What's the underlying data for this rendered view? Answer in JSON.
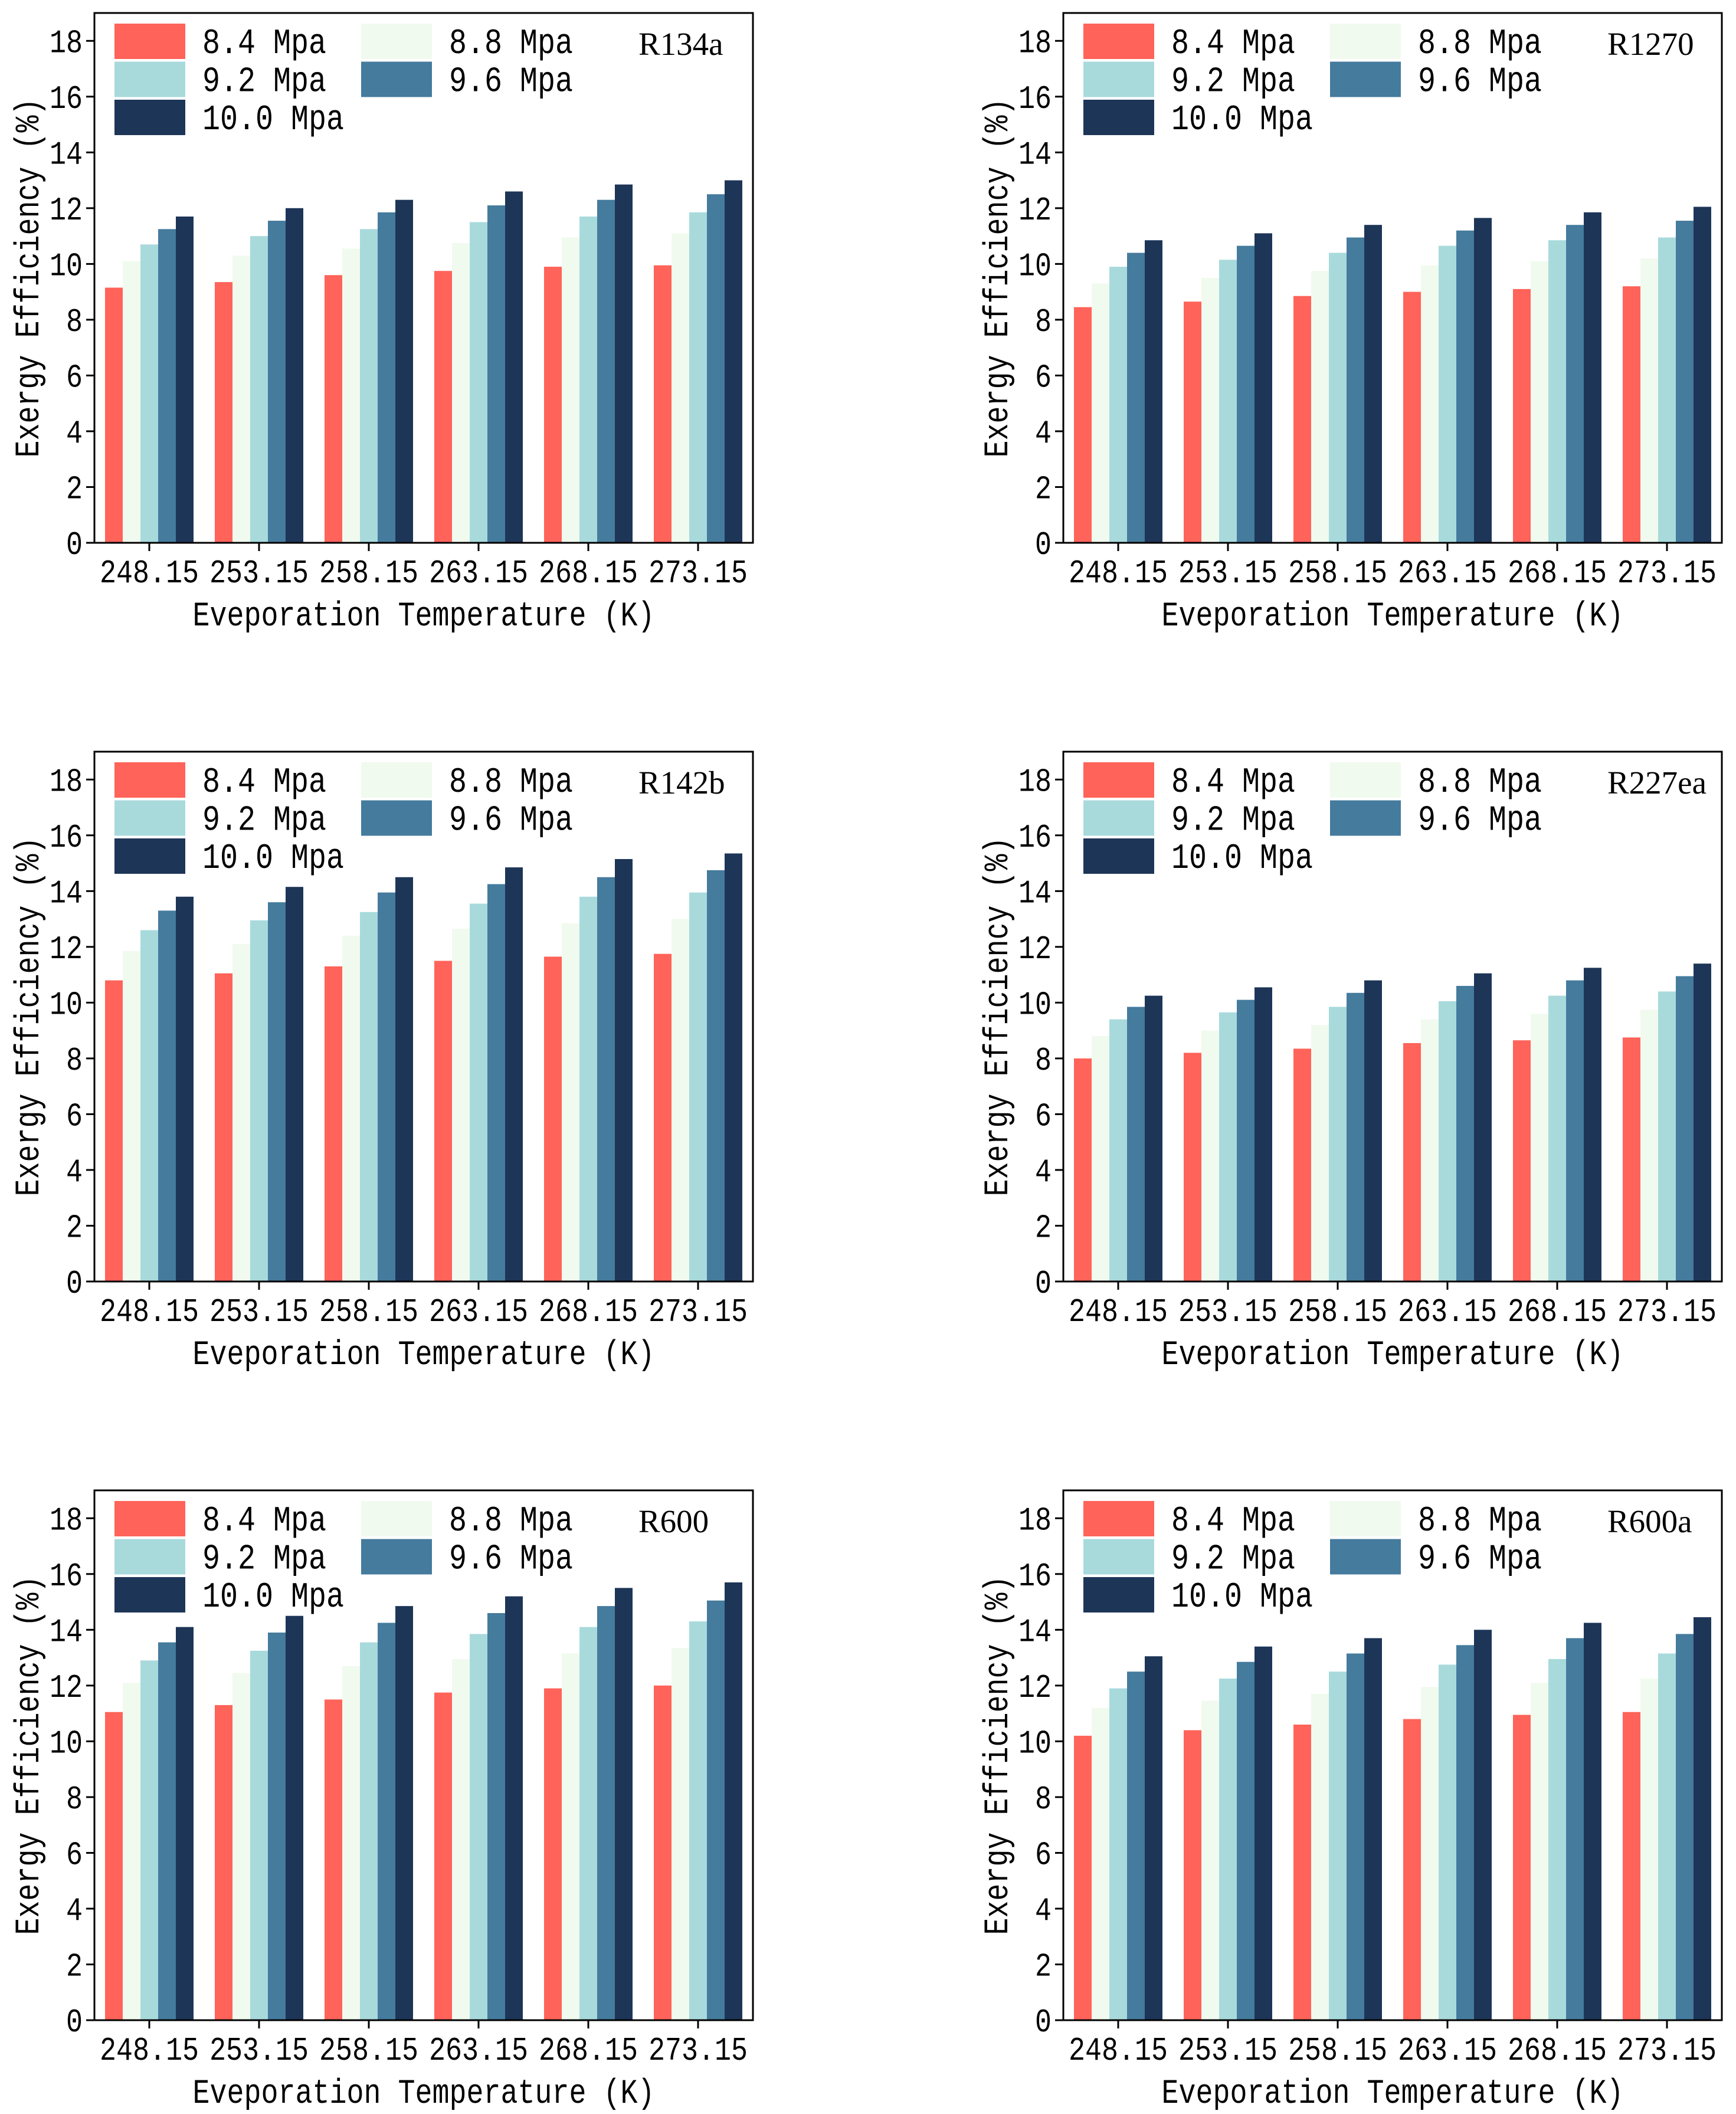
{
  "chart_data": [
    {
      "type": "bar",
      "title": "R134a",
      "xlabel": "Eveporation Temperature (K)",
      "ylabel": "Exergy Efficiency (%)",
      "categories": [
        "248.15",
        "253.15",
        "258.15",
        "263.15",
        "268.15",
        "273.15"
      ],
      "yticks": [
        0,
        2,
        4,
        6,
        8,
        10,
        12,
        14,
        16,
        18
      ],
      "ylim": [
        0,
        19
      ],
      "legend": "top-left",
      "series": [
        {
          "name": "8.4 Mpa",
          "color": "#FF6359",
          "values": [
            9.15,
            9.35,
            9.6,
            9.75,
            9.9,
            9.95
          ]
        },
        {
          "name": "8.8 Mpa",
          "color": "#F1FAEE",
          "values": [
            10.1,
            10.3,
            10.55,
            10.75,
            10.95,
            11.1
          ]
        },
        {
          "name": "9.2 Mpa",
          "color": "#A8DADC",
          "values": [
            10.7,
            11.0,
            11.25,
            11.5,
            11.7,
            11.85
          ]
        },
        {
          "name": "9.6 Mpa",
          "color": "#457B9D",
          "values": [
            11.25,
            11.55,
            11.85,
            12.1,
            12.3,
            12.5
          ]
        },
        {
          "name": "10.0 Mpa",
          "color": "#1D3557",
          "values": [
            11.7,
            12.0,
            12.3,
            12.6,
            12.85,
            13.0
          ]
        }
      ]
    },
    {
      "type": "bar",
      "title": "R1270",
      "xlabel": "Eveporation Temperature (K)",
      "ylabel": "Exergy Efficiency (%)",
      "categories": [
        "248.15",
        "253.15",
        "258.15",
        "263.15",
        "268.15",
        "273.15"
      ],
      "yticks": [
        0,
        2,
        4,
        6,
        8,
        10,
        12,
        14,
        16,
        18
      ],
      "ylim": [
        0,
        19
      ],
      "legend": "top-left",
      "series": [
        {
          "name": "8.4 Mpa",
          "color": "#FF6359",
          "values": [
            8.45,
            8.65,
            8.85,
            9.0,
            9.1,
            9.2
          ]
        },
        {
          "name": "8.8 Mpa",
          "color": "#F1FAEE",
          "values": [
            9.3,
            9.5,
            9.75,
            9.95,
            10.1,
            10.2
          ]
        },
        {
          "name": "9.2 Mpa",
          "color": "#A8DADC",
          "values": [
            9.9,
            10.15,
            10.4,
            10.65,
            10.85,
            10.95
          ]
        },
        {
          "name": "9.6 Mpa",
          "color": "#457B9D",
          "values": [
            10.4,
            10.65,
            10.95,
            11.2,
            11.4,
            11.55
          ]
        },
        {
          "name": "10.0 Mpa",
          "color": "#1D3557",
          "values": [
            10.85,
            11.1,
            11.4,
            11.65,
            11.85,
            12.05
          ]
        }
      ]
    },
    {
      "type": "bar",
      "title": "R142b",
      "xlabel": "Eveporation Temperature (K)",
      "ylabel": "Exergy Efficiency (%)",
      "categories": [
        "248.15",
        "253.15",
        "258.15",
        "263.15",
        "268.15",
        "273.15"
      ],
      "yticks": [
        0,
        2,
        4,
        6,
        8,
        10,
        12,
        14,
        16,
        18
      ],
      "ylim": [
        0,
        19
      ],
      "legend": "top-left",
      "series": [
        {
          "name": "8.4 Mpa",
          "color": "#FF6359",
          "values": [
            10.8,
            11.05,
            11.3,
            11.5,
            11.65,
            11.75
          ]
        },
        {
          "name": "8.8 Mpa",
          "color": "#F1FAEE",
          "values": [
            11.85,
            12.1,
            12.4,
            12.65,
            12.85,
            13.0
          ]
        },
        {
          "name": "9.2 Mpa",
          "color": "#A8DADC",
          "values": [
            12.6,
            12.95,
            13.25,
            13.55,
            13.8,
            13.95
          ]
        },
        {
          "name": "9.6 Mpa",
          "color": "#457B9D",
          "values": [
            13.3,
            13.6,
            13.95,
            14.25,
            14.5,
            14.75
          ]
        },
        {
          "name": "10.0 Mpa",
          "color": "#1D3557",
          "values": [
            13.8,
            14.15,
            14.5,
            14.85,
            15.15,
            15.35
          ]
        }
      ]
    },
    {
      "type": "bar",
      "title": "R227ea",
      "xlabel": "Eveporation Temperature (K)",
      "ylabel": "Exergy Efficiency (%)",
      "categories": [
        "248.15",
        "253.15",
        "258.15",
        "263.15",
        "268.15",
        "273.15"
      ],
      "yticks": [
        0,
        2,
        4,
        6,
        8,
        10,
        12,
        14,
        16,
        18
      ],
      "ylim": [
        0,
        19
      ],
      "legend": "top-left",
      "series": [
        {
          "name": "8.4 Mpa",
          "color": "#FF6359",
          "values": [
            8.0,
            8.2,
            8.35,
            8.55,
            8.65,
            8.75
          ]
        },
        {
          "name": "8.8 Mpa",
          "color": "#F1FAEE",
          "values": [
            8.8,
            9.0,
            9.2,
            9.4,
            9.6,
            9.75
          ]
        },
        {
          "name": "9.2 Mpa",
          "color": "#A8DADC",
          "values": [
            9.4,
            9.65,
            9.85,
            10.05,
            10.25,
            10.4
          ]
        },
        {
          "name": "9.6 Mpa",
          "color": "#457B9D",
          "values": [
            9.85,
            10.1,
            10.35,
            10.6,
            10.8,
            10.95
          ]
        },
        {
          "name": "10.0 Mpa",
          "color": "#1D3557",
          "values": [
            10.25,
            10.55,
            10.8,
            11.05,
            11.25,
            11.4
          ]
        }
      ]
    },
    {
      "type": "bar",
      "title": "R600",
      "xlabel": "Eveporation Temperature (K)",
      "ylabel": "Exergy Efficiency (%)",
      "categories": [
        "248.15",
        "253.15",
        "258.15",
        "263.15",
        "268.15",
        "273.15"
      ],
      "yticks": [
        0,
        2,
        4,
        6,
        8,
        10,
        12,
        14,
        16,
        18
      ],
      "ylim": [
        0,
        19
      ],
      "legend": "top-left",
      "series": [
        {
          "name": "8.4 Mpa",
          "color": "#FF6359",
          "values": [
            11.05,
            11.3,
            11.5,
            11.75,
            11.9,
            12.0
          ]
        },
        {
          "name": "8.8 Mpa",
          "color": "#F1FAEE",
          "values": [
            12.1,
            12.45,
            12.7,
            12.95,
            13.15,
            13.35
          ]
        },
        {
          "name": "9.2 Mpa",
          "color": "#A8DADC",
          "values": [
            12.9,
            13.25,
            13.55,
            13.85,
            14.1,
            14.3
          ]
        },
        {
          "name": "9.6 Mpa",
          "color": "#457B9D",
          "values": [
            13.55,
            13.9,
            14.25,
            14.6,
            14.85,
            15.05
          ]
        },
        {
          "name": "10.0 Mpa",
          "color": "#1D3557",
          "values": [
            14.1,
            14.5,
            14.85,
            15.2,
            15.5,
            15.7
          ]
        }
      ]
    },
    {
      "type": "bar",
      "title": "R600a",
      "xlabel": "Eveporation Temperature (K)",
      "ylabel": "Exergy Efficiency (%)",
      "categories": [
        "248.15",
        "253.15",
        "258.15",
        "263.15",
        "268.15",
        "273.15"
      ],
      "yticks": [
        0,
        2,
        4,
        6,
        8,
        10,
        12,
        14,
        16,
        18
      ],
      "ylim": [
        0,
        19
      ],
      "legend": "top-left",
      "series": [
        {
          "name": "8.4 Mpa",
          "color": "#FF6359",
          "values": [
            10.2,
            10.4,
            10.6,
            10.8,
            10.95,
            11.05
          ]
        },
        {
          "name": "8.8 Mpa",
          "color": "#F1FAEE",
          "values": [
            11.2,
            11.45,
            11.7,
            11.95,
            12.1,
            12.25
          ]
        },
        {
          "name": "9.2 Mpa",
          "color": "#A8DADC",
          "values": [
            11.9,
            12.25,
            12.5,
            12.75,
            12.95,
            13.15
          ]
        },
        {
          "name": "9.6 Mpa",
          "color": "#457B9D",
          "values": [
            12.5,
            12.85,
            13.15,
            13.45,
            13.7,
            13.85
          ]
        },
        {
          "name": "10.0 Mpa",
          "color": "#1D3557",
          "values": [
            13.05,
            13.4,
            13.7,
            14.0,
            14.25,
            14.45
          ]
        }
      ]
    }
  ]
}
